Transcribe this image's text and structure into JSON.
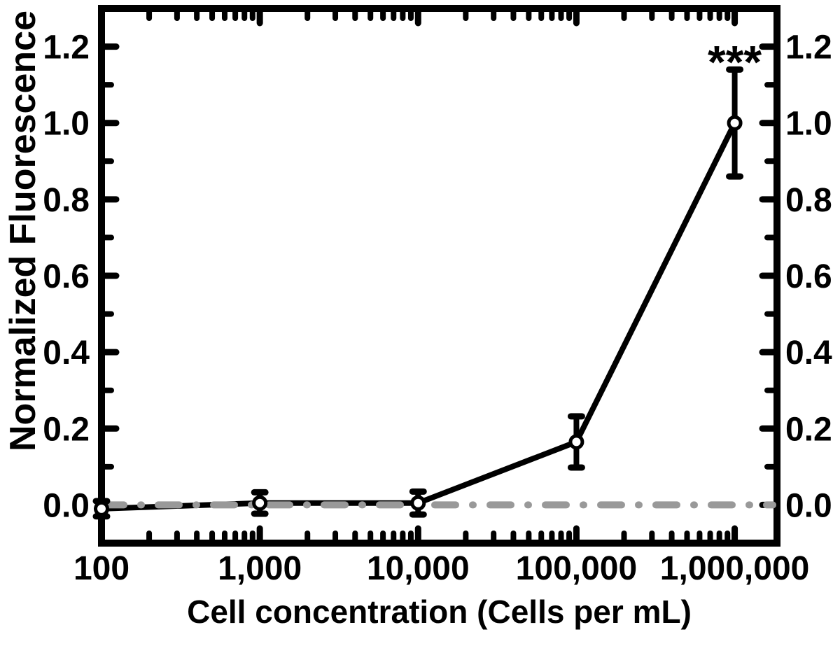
{
  "figure": {
    "background_color": "#ffffff",
    "axis_color": "#000000"
  },
  "chart_data": {
    "type": "line",
    "title": "",
    "xlabel": "Cell concentration (Cells per mL)",
    "ylabel": "Normalized Fluorescence",
    "x_scale": "log",
    "xlim": [
      100,
      1850000
    ],
    "ylim": [
      -0.1,
      1.3
    ],
    "grid": false,
    "legend": null,
    "x_ticks": [
      {
        "value": 100,
        "label": "100"
      },
      {
        "value": 1000,
        "label": "1,000"
      },
      {
        "value": 10000,
        "label": "10,000"
      },
      {
        "value": 100000,
        "label": "100,000"
      },
      {
        "value": 1000000,
        "label": "1,000,000"
      }
    ],
    "x_minor_ticks": "log-decade-subdivisions",
    "y_ticks": [
      {
        "value": 0.0,
        "label": "0.0"
      },
      {
        "value": 0.2,
        "label": "0.2"
      },
      {
        "value": 0.4,
        "label": "0.4"
      },
      {
        "value": 0.6,
        "label": "0.6"
      },
      {
        "value": 0.8,
        "label": "0.8"
      },
      {
        "value": 1.0,
        "label": "1.0"
      },
      {
        "value": 1.2,
        "label": "1.2"
      }
    ],
    "y_tick_label_sides": "both",
    "y_minor_step": 0.1,
    "series": [
      {
        "name": "normalized fluorescence vs cell concentration",
        "marker": "open-circle",
        "line_color": "#000000",
        "marker_fill": "#ffffff",
        "points": [
          {
            "x": 100,
            "y": -0.01,
            "err": 0.02
          },
          {
            "x": 1000,
            "y": 0.005,
            "err": 0.028
          },
          {
            "x": 10000,
            "y": 0.005,
            "err": 0.03
          },
          {
            "x": 100000,
            "y": 0.165,
            "err": 0.067
          },
          {
            "x": 1000000,
            "y": 1.0,
            "err": 0.14
          }
        ]
      }
    ],
    "reference_line": {
      "y": 0.0,
      "style": "dash-dot",
      "color": "#999999"
    },
    "annotation": {
      "text": "***",
      "x": 1000000,
      "y": 1.18
    }
  }
}
